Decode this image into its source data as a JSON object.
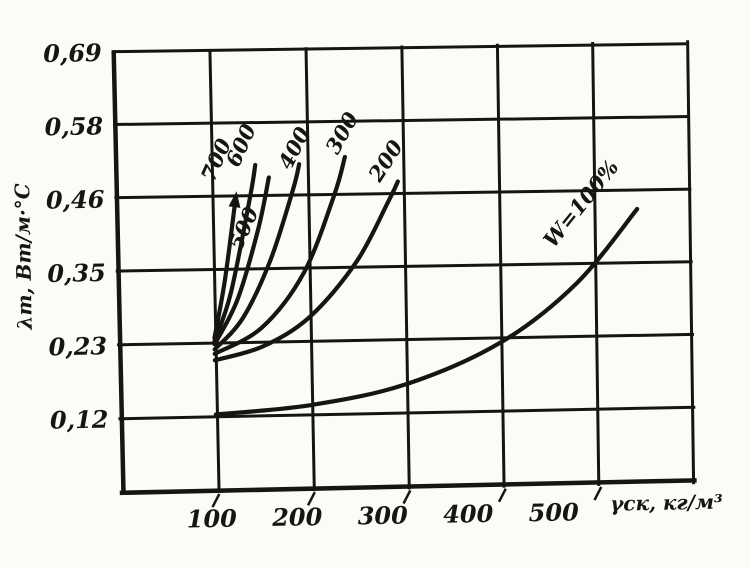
{
  "figure": {
    "background": "#fcfbf8",
    "ink": "#171513",
    "description": "Scanned hand-drawn graph of thermal conductivity vs dry density for different moisture contents W, %"
  },
  "chart_data": {
    "type": "line",
    "title": "",
    "xlabel": "γск, кг/м³",
    "ylabel": "λт, Вт/м·°С",
    "xlim": [
      0,
      600
    ],
    "ylim": [
      0,
      0.69
    ],
    "grid": true,
    "legend_position": "labels-on-curves",
    "x_ticks": [
      {
        "value": 100,
        "label": "100"
      },
      {
        "value": 200,
        "label": "200"
      },
      {
        "value": 300,
        "label": "300"
      },
      {
        "value": 400,
        "label": "400"
      },
      {
        "value": 500,
        "label": "500"
      }
    ],
    "y_ticks": [
      {
        "value": 0.69,
        "label": "0,69"
      },
      {
        "value": 0.575,
        "label": "0,58"
      },
      {
        "value": 0.46,
        "label": "0,46"
      },
      {
        "value": 0.345,
        "label": "0,35"
      },
      {
        "value": 0.23,
        "label": "0,23"
      },
      {
        "value": 0.115,
        "label": "0,12"
      }
    ],
    "series": [
      {
        "name": "W-700",
        "label": "700",
        "label_pos": [
          225,
          160
        ],
        "label_rot": -65,
        "arrow": true,
        "points": [
          [
            100,
            0.24
          ],
          [
            112,
            0.33
          ],
          [
            125,
            0.46
          ]
        ]
      },
      {
        "name": "W-600",
        "label": "600",
        "label_pos": [
          250,
          146
        ],
        "label_rot": -65,
        "arrow": false,
        "points": [
          [
            100,
            0.235
          ],
          [
            118,
            0.31
          ],
          [
            140,
            0.46
          ],
          [
            146,
            0.51
          ]
        ]
      },
      {
        "name": "W-500",
        "label": "500",
        "label_pos": [
          251,
          229
        ],
        "label_rot": -65,
        "arrow": false,
        "points": [
          [
            100,
            0.23
          ],
          [
            125,
            0.3
          ],
          [
            148,
            0.41
          ],
          [
            160,
            0.49
          ]
        ]
      },
      {
        "name": "W-400",
        "label": "400",
        "label_pos": [
          303,
          150
        ],
        "label_rot": -62,
        "arrow": false,
        "points": [
          [
            100,
            0.222
          ],
          [
            130,
            0.27
          ],
          [
            160,
            0.36
          ],
          [
            185,
            0.47
          ],
          [
            192,
            0.51
          ]
        ]
      },
      {
        "name": "W-300",
        "label": "300",
        "label_pos": [
          351,
          136
        ],
        "label_rot": -60,
        "arrow": false,
        "points": [
          [
            100,
            0.215
          ],
          [
            150,
            0.255
          ],
          [
            195,
            0.34
          ],
          [
            228,
            0.46
          ],
          [
            240,
            0.52
          ]
        ]
      },
      {
        "name": "W-200",
        "label": "200",
        "label_pos": [
          394,
          165
        ],
        "label_rot": -56,
        "arrow": false,
        "points": [
          [
            100,
            0.205
          ],
          [
            150,
            0.225
          ],
          [
            200,
            0.27
          ],
          [
            250,
            0.355
          ],
          [
            285,
            0.45
          ],
          [
            295,
            0.48
          ]
        ]
      },
      {
        "name": "W-100",
        "label": "W=100%",
        "label_pos": [
          588,
          212
        ],
        "label_rot": -50,
        "arrow": false,
        "points": [
          [
            100,
            0.12
          ],
          [
            200,
            0.132
          ],
          [
            300,
            0.162
          ],
          [
            400,
            0.225
          ],
          [
            480,
            0.315
          ],
          [
            545,
            0.43
          ]
        ]
      }
    ]
  }
}
